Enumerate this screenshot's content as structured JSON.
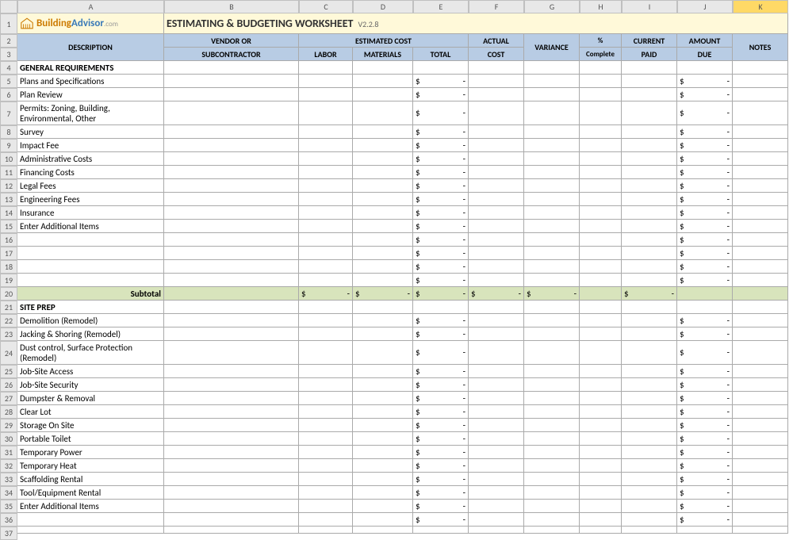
{
  "columns": [
    "",
    "A",
    "B",
    "C",
    "D",
    "E",
    "F",
    "G",
    "H",
    "I",
    "J",
    "K"
  ],
  "selected_col": "K",
  "logo": {
    "text1": "Building",
    "text2": "Advisor",
    "suffix": ".com"
  },
  "title": "ESTIMATING & BUDGETING WORKSHEET",
  "version": "V2.2.8",
  "headers": {
    "description": "DESCRIPTION",
    "vendor": "VENDOR  OR",
    "subcontractor": "SUBCONTRACTOR",
    "estimated_cost": "ESTIMATED COST",
    "labor": "LABOR",
    "materials": "MATERIALS",
    "total": "TOTAL",
    "actual_cost": "ACTUAL COST",
    "variance": "VARIANCE",
    "pct": "%",
    "complete": "Complete",
    "current": "CURRENT",
    "paid": "PAID",
    "amount": "AMOUNT",
    "due": "DUE",
    "notes": "NOTES"
  },
  "subtotal_label": "Subtotal",
  "rows": [
    {
      "n": 4,
      "type": "section",
      "desc": "GENERAL REQUIREMENTS"
    },
    {
      "n": 5,
      "type": "item",
      "desc": "Plans and Specifications"
    },
    {
      "n": 6,
      "type": "item",
      "desc": "Plan Review"
    },
    {
      "n": 7,
      "type": "item-tall",
      "desc": "Permits: Zoning, Building, Environmental, Other"
    },
    {
      "n": 8,
      "type": "item",
      "desc": "Survey"
    },
    {
      "n": 9,
      "type": "item",
      "desc": "Impact Fee"
    },
    {
      "n": 10,
      "type": "item",
      "desc": "Administrative Costs"
    },
    {
      "n": 11,
      "type": "item",
      "desc": "Financing Costs"
    },
    {
      "n": 12,
      "type": "item",
      "desc": "Legal Fees"
    },
    {
      "n": 13,
      "type": "item",
      "desc": "Engineering Fees"
    },
    {
      "n": 14,
      "type": "item",
      "desc": "Insurance"
    },
    {
      "n": 15,
      "type": "item",
      "desc": "Enter Additional Items"
    },
    {
      "n": 16,
      "type": "blank"
    },
    {
      "n": 17,
      "type": "blank"
    },
    {
      "n": 18,
      "type": "blank"
    },
    {
      "n": 19,
      "type": "blank"
    },
    {
      "n": 20,
      "type": "subtotal"
    },
    {
      "n": 21,
      "type": "section",
      "desc": "SITE PREP"
    },
    {
      "n": 22,
      "type": "item",
      "desc": "Demolition (Remodel)"
    },
    {
      "n": 23,
      "type": "item",
      "desc": "Jacking & Shoring (Remodel)"
    },
    {
      "n": 24,
      "type": "item-tall",
      "desc": "Dust control, Surface Protection (Remodel)"
    },
    {
      "n": 25,
      "type": "item",
      "desc": "Job-Site Access"
    },
    {
      "n": 26,
      "type": "item",
      "desc": "Job-Site Security"
    },
    {
      "n": 27,
      "type": "item",
      "desc": "Dumpster & Removal"
    },
    {
      "n": 28,
      "type": "item",
      "desc": "Clear Lot"
    },
    {
      "n": 29,
      "type": "item",
      "desc": "Storage On Site"
    },
    {
      "n": 30,
      "type": "item",
      "desc": "Portable Toilet"
    },
    {
      "n": 31,
      "type": "item",
      "desc": "Temporary Power"
    },
    {
      "n": 32,
      "type": "item",
      "desc": "Temporary Heat"
    },
    {
      "n": 33,
      "type": "item",
      "desc": "Scaffolding Rental"
    },
    {
      "n": 34,
      "type": "item",
      "desc": "Tool/Equipment Rental"
    },
    {
      "n": 35,
      "type": "item",
      "desc": "Enter Additional Items"
    },
    {
      "n": 36,
      "type": "blank"
    },
    {
      "n": 37,
      "type": "blankpartial"
    }
  ],
  "dash": "-",
  "dollar": "$"
}
